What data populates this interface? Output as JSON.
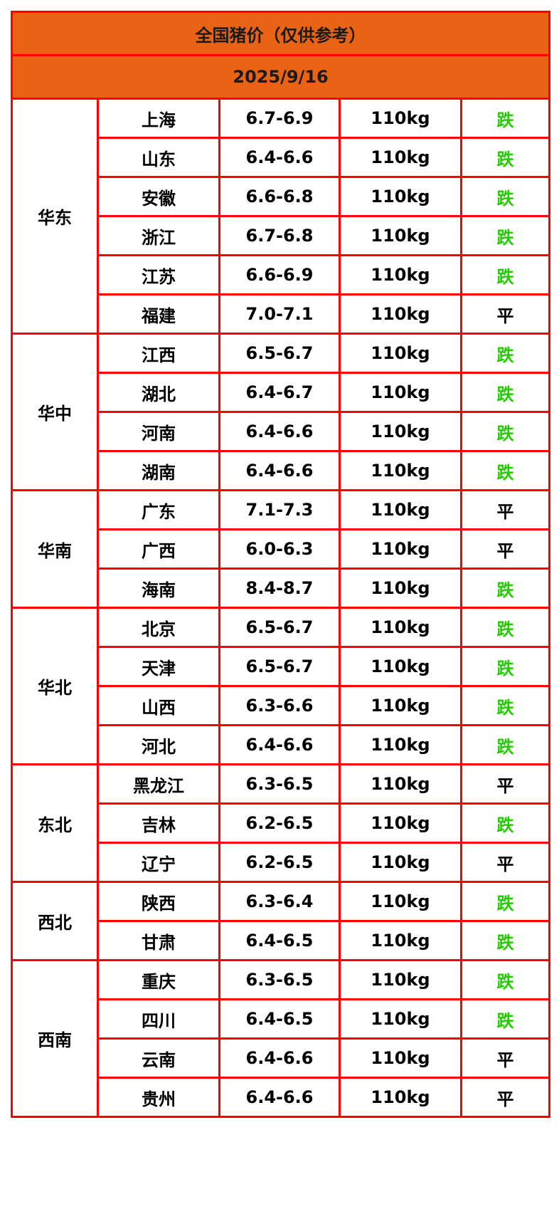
{
  "title": "全国猪价（仅供参考）",
  "date": "2025/9/16",
  "colors": {
    "header_bg": "#e96314",
    "border": "#ff0000",
    "down": "#22cc00",
    "flat": "#000000"
  },
  "regions": [
    {
      "name": "华东",
      "rows": [
        {
          "province": "上海",
          "price": "6.7-6.9",
          "weight": "110kg",
          "trend": "跌"
        },
        {
          "province": "山东",
          "price": "6.4-6.6",
          "weight": "110kg",
          "trend": "跌"
        },
        {
          "province": "安徽",
          "price": "6.6-6.8",
          "weight": "110kg",
          "trend": "跌"
        },
        {
          "province": "浙江",
          "price": "6.7-6.8",
          "weight": "110kg",
          "trend": "跌"
        },
        {
          "province": "江苏",
          "price": "6.6-6.9",
          "weight": "110kg",
          "trend": "跌"
        },
        {
          "province": "福建",
          "price": "7.0-7.1",
          "weight": "110kg",
          "trend": "平"
        }
      ]
    },
    {
      "name": "华中",
      "rows": [
        {
          "province": "江西",
          "price": "6.5-6.7",
          "weight": "110kg",
          "trend": "跌"
        },
        {
          "province": "湖北",
          "price": "6.4-6.7",
          "weight": "110kg",
          "trend": "跌"
        },
        {
          "province": "河南",
          "price": "6.4-6.6",
          "weight": "110kg",
          "trend": "跌"
        },
        {
          "province": "湖南",
          "price": "6.4-6.6",
          "weight": "110kg",
          "trend": "跌"
        }
      ]
    },
    {
      "name": "华南",
      "rows": [
        {
          "province": "广东",
          "price": "7.1-7.3",
          "weight": "110kg",
          "trend": "平"
        },
        {
          "province": "广西",
          "price": "6.0-6.3",
          "weight": "110kg",
          "trend": "平"
        },
        {
          "province": "海南",
          "price": "8.4-8.7",
          "weight": "110kg",
          "trend": "跌"
        }
      ]
    },
    {
      "name": "华北",
      "rows": [
        {
          "province": "北京",
          "price": "6.5-6.7",
          "weight": "110kg",
          "trend": "跌"
        },
        {
          "province": "天津",
          "price": "6.5-6.7",
          "weight": "110kg",
          "trend": "跌"
        },
        {
          "province": "山西",
          "price": "6.3-6.6",
          "weight": "110kg",
          "trend": "跌"
        },
        {
          "province": "河北",
          "price": "6.4-6.6",
          "weight": "110kg",
          "trend": "跌"
        }
      ]
    },
    {
      "name": "东北",
      "rows": [
        {
          "province": "黑龙江",
          "price": "6.3-6.5",
          "weight": "110kg",
          "trend": "平"
        },
        {
          "province": "吉林",
          "price": "6.2-6.5",
          "weight": "110kg",
          "trend": "跌"
        },
        {
          "province": "辽宁",
          "price": "6.2-6.5",
          "weight": "110kg",
          "trend": "平"
        }
      ]
    },
    {
      "name": "西北",
      "rows": [
        {
          "province": "陕西",
          "price": "6.3-6.4",
          "weight": "110kg",
          "trend": "跌"
        },
        {
          "province": "甘肃",
          "price": "6.4-6.5",
          "weight": "110kg",
          "trend": "跌"
        }
      ]
    },
    {
      "name": "西南",
      "rows": [
        {
          "province": "重庆",
          "price": "6.3-6.5",
          "weight": "110kg",
          "trend": "跌"
        },
        {
          "province": "四川",
          "price": "6.4-6.5",
          "weight": "110kg",
          "trend": "跌"
        },
        {
          "province": "云南",
          "price": "6.4-6.6",
          "weight": "110kg",
          "trend": "平"
        },
        {
          "province": "贵州",
          "price": "6.4-6.6",
          "weight": "110kg",
          "trend": "平"
        }
      ]
    }
  ]
}
